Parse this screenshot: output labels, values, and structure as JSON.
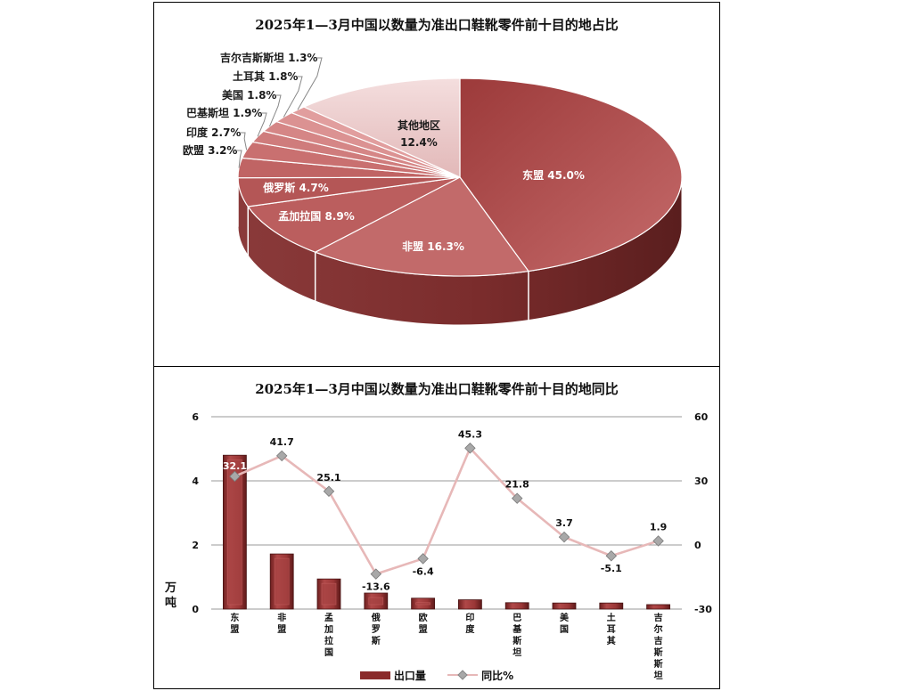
{
  "pie_title": "2025年1—3月中国以数量为准出口鞋靴零件前十目的地占比",
  "bar_title": "2025年1—3月中国以数量为准出口鞋靴零件前十目的地同比",
  "y_left_unit": "万吨",
  "legend": {
    "bar": "出口量",
    "line": "同比%"
  },
  "colors": {
    "bar": "#8a2a2a",
    "line": "#e7b8b8",
    "marker": "#a8a8a8",
    "pie_base": "#b85a5a"
  },
  "chart_data": [
    {
      "type": "pie",
      "title": "2025年1—3月中国以数量为准出口鞋靴零件前十目的地占比",
      "slices": [
        {
          "label": "东盟",
          "value": 45.0,
          "text": "45.0%"
        },
        {
          "label": "非盟",
          "value": 16.3,
          "text": "16.3%"
        },
        {
          "label": "孟加拉国",
          "value": 8.9,
          "text": "8.9%"
        },
        {
          "label": "俄罗斯",
          "value": 4.7,
          "text": "4.7%"
        },
        {
          "label": "欧盟",
          "value": 3.2,
          "text": "3.2%"
        },
        {
          "label": "印度",
          "value": 2.7,
          "text": "2.7%"
        },
        {
          "label": "巴基斯坦",
          "value": 1.9,
          "text": "1.9%"
        },
        {
          "label": "美国",
          "value": 1.8,
          "text": "1.8%"
        },
        {
          "label": "土耳其",
          "value": 1.8,
          "text": "1.8%"
        },
        {
          "label": "吉尔吉斯斯坦",
          "value": 1.3,
          "text": "1.3%"
        },
        {
          "label": "其他地区",
          "value": 12.4,
          "text": "12.4%"
        }
      ]
    },
    {
      "type": "bar",
      "title": "2025年1—3月中国以数量为准出口鞋靴零件前十目的地同比",
      "categories": [
        "东盟",
        "非盟",
        "孟加拉国",
        "俄罗斯",
        "欧盟",
        "印度",
        "巴基斯坦",
        "美国",
        "土耳其",
        "吉尔吉斯斯坦"
      ],
      "ylabel": "万吨",
      "ylim": [
        0,
        6
      ],
      "yticks": [
        0,
        2,
        4,
        6
      ],
      "y2lim": [
        -30,
        60
      ],
      "y2ticks": [
        -30,
        0,
        30,
        60
      ],
      "series": [
        {
          "name": "出口量",
          "type": "bar",
          "axis": "left",
          "values": [
            4.8,
            1.72,
            0.94,
            0.5,
            0.34,
            0.29,
            0.2,
            0.19,
            0.19,
            0.14
          ]
        },
        {
          "name": "同比%",
          "type": "line",
          "axis": "right",
          "values": [
            32.1,
            41.7,
            25.1,
            -13.6,
            -6.4,
            45.3,
            21.8,
            3.7,
            -5.1,
            1.9
          ],
          "labels": [
            "32.1",
            "41.7",
            "25.1",
            "-13.6",
            "-6.4",
            "45.3",
            "21.8",
            "3.7",
            "-5.1",
            "1.9"
          ]
        }
      ],
      "grid": true,
      "legend": "bottom"
    }
  ]
}
